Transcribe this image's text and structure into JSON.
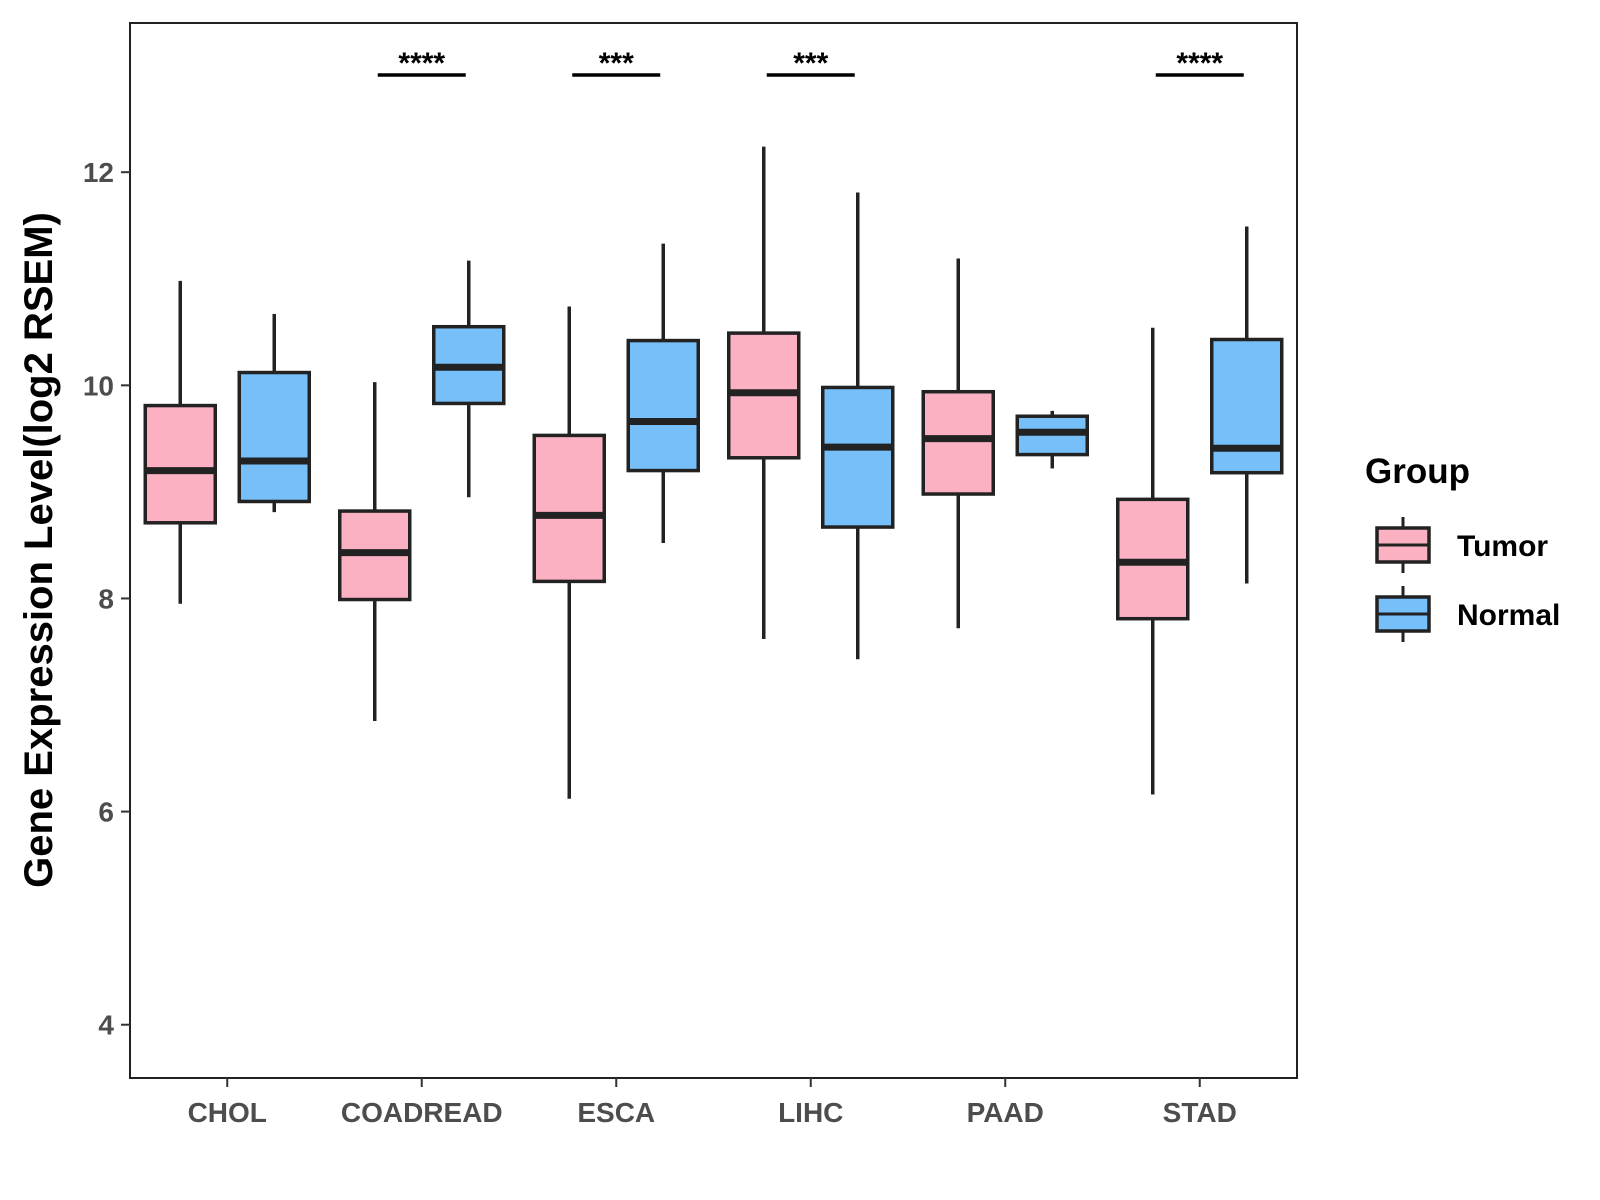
{
  "chart_data": {
    "type": "boxplot",
    "title": "",
    "xlabel": "",
    "ylabel": "Gene Expression Level(log2 RSEM)",
    "ylim": [
      3.5,
      13.4
    ],
    "yticks": [
      4,
      6,
      8,
      10,
      12
    ],
    "grid": false,
    "legend_position": "right",
    "legend": {
      "title": "Group",
      "entries": [
        {
          "name": "Tumor",
          "color": "#FBB1C2"
        },
        {
          "name": "Normal",
          "color": "#76BFF8"
        }
      ]
    },
    "categories": [
      "CHOL",
      "COADREAD",
      "ESCA",
      "LIHC",
      "PAAD",
      "STAD"
    ],
    "series": [
      {
        "name": "Tumor",
        "color": "#FBB1C2",
        "boxes": [
          {
            "min": 7.95,
            "q1": 8.71,
            "median": 9.2,
            "q3": 9.81,
            "max": 10.98
          },
          {
            "min": 6.85,
            "q1": 7.99,
            "median": 8.43,
            "q3": 8.82,
            "max": 10.03
          },
          {
            "min": 6.12,
            "q1": 8.16,
            "median": 8.78,
            "q3": 9.53,
            "max": 10.74
          },
          {
            "min": 7.62,
            "q1": 9.32,
            "median": 9.93,
            "q3": 10.49,
            "max": 12.24
          },
          {
            "min": 7.72,
            "q1": 8.98,
            "median": 9.5,
            "q3": 9.94,
            "max": 11.19
          },
          {
            "min": 6.16,
            "q1": 7.81,
            "median": 8.34,
            "q3": 8.93,
            "max": 10.54
          }
        ]
      },
      {
        "name": "Normal",
        "color": "#76BFF8",
        "boxes": [
          {
            "min": 8.81,
            "q1": 8.91,
            "median": 9.29,
            "q3": 10.12,
            "max": 10.67
          },
          {
            "min": 8.95,
            "q1": 9.83,
            "median": 10.17,
            "q3": 10.55,
            "max": 11.17
          },
          {
            "min": 8.52,
            "q1": 9.2,
            "median": 9.66,
            "q3": 10.42,
            "max": 11.33
          },
          {
            "min": 7.43,
            "q1": 8.67,
            "median": 9.42,
            "q3": 9.98,
            "max": 11.81
          },
          {
            "min": 9.22,
            "q1": 9.35,
            "median": 9.56,
            "q3": 9.71,
            "max": 9.76
          },
          {
            "min": 8.14,
            "q1": 9.18,
            "median": 9.41,
            "q3": 10.43,
            "max": 11.49
          }
        ]
      }
    ],
    "significance": [
      {
        "category": "COADREAD",
        "label": "****"
      },
      {
        "category": "ESCA",
        "label": "***"
      },
      {
        "category": "LIHC",
        "label": "***"
      },
      {
        "category": "STAD",
        "label": "****"
      }
    ]
  }
}
